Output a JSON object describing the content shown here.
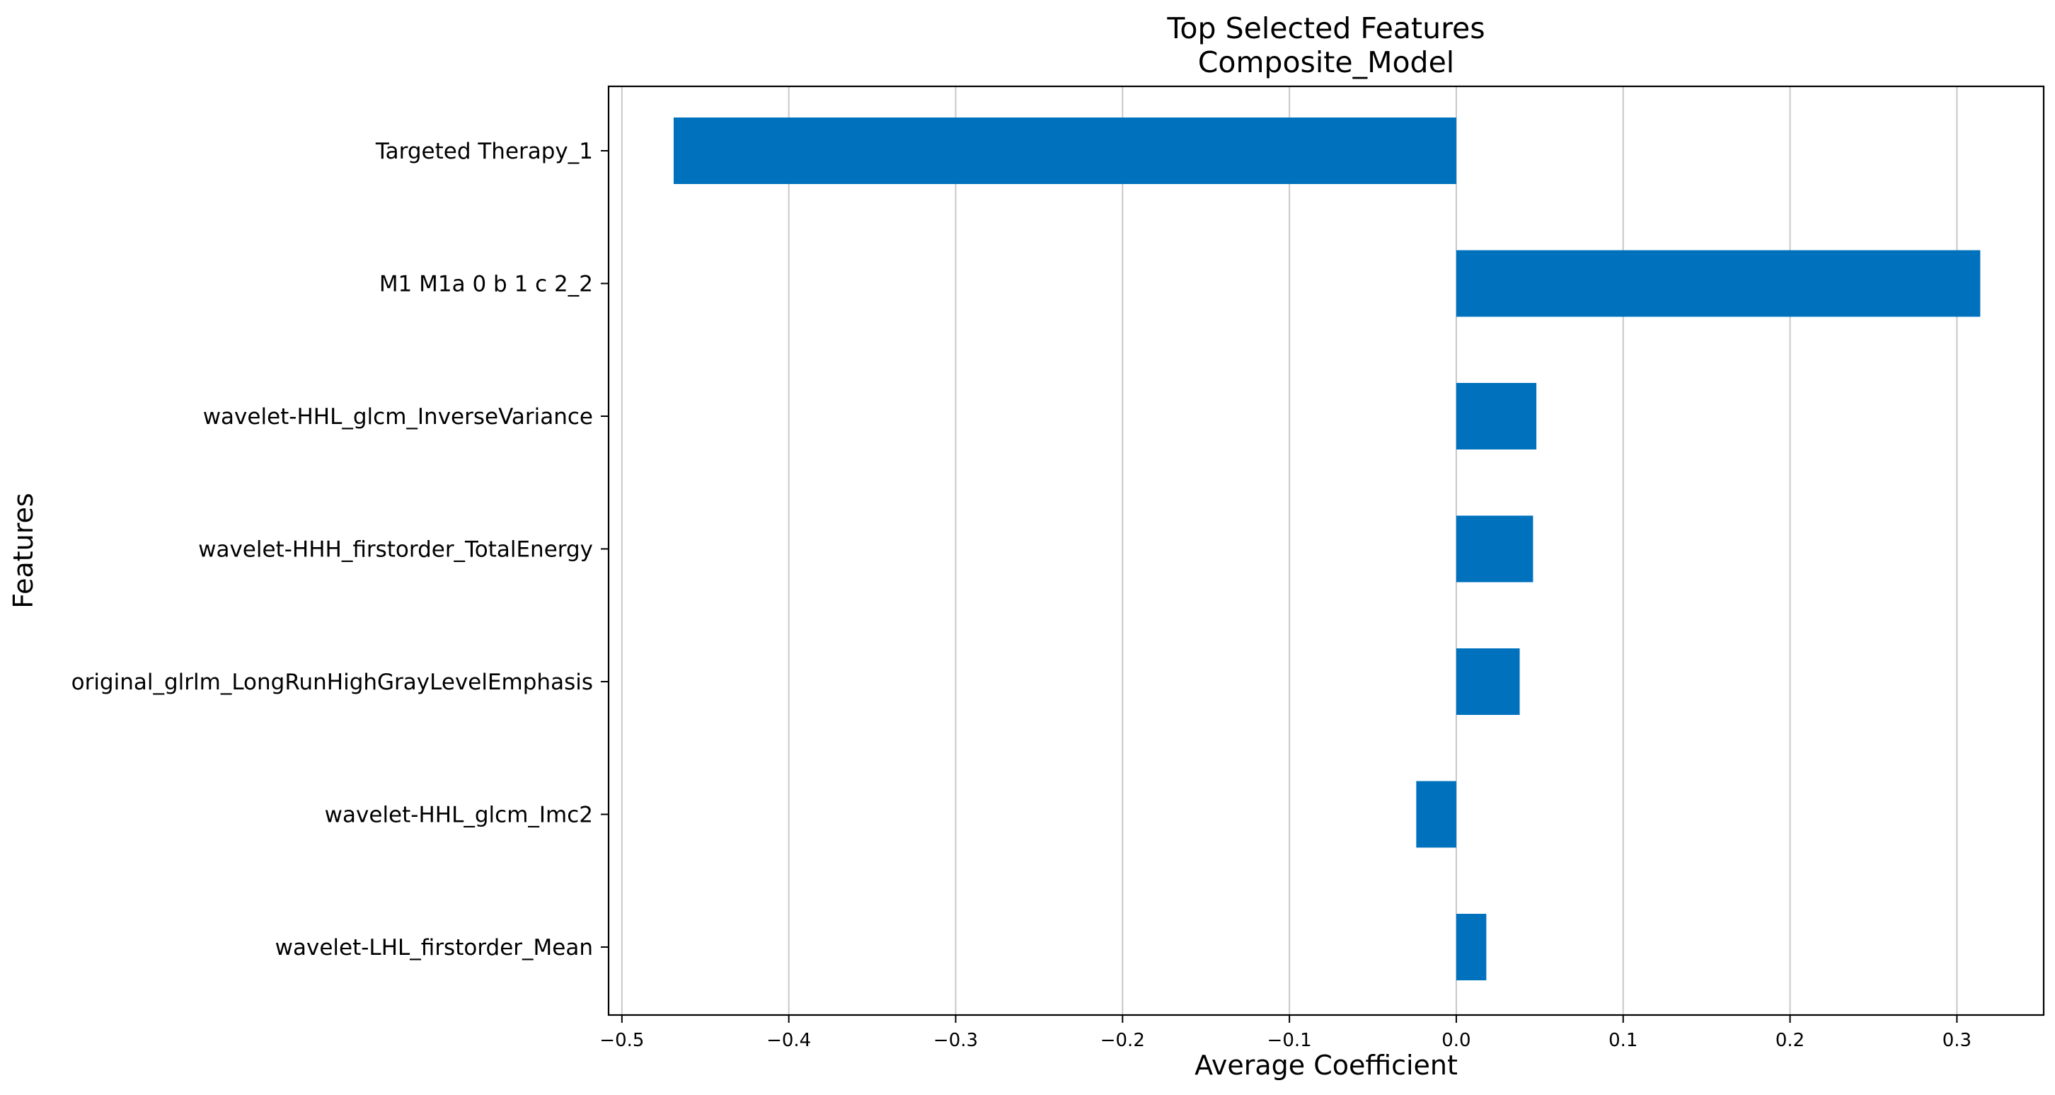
{
  "chart_data": {
    "type": "bar",
    "orientation": "horizontal",
    "title": "Top Selected Features",
    "subtitle": "Composite_Model",
    "xlabel": "Average Coefficient",
    "ylabel": "Features",
    "categories": [
      "Targeted Therapy_1",
      "M1 M1a 0 b 1 c 2_2",
      "wavelet-HHL_glcm_InverseVariance",
      "wavelet-HHH_firstorder_TotalEnergy",
      "original_glrlm_LongRunHighGrayLevelEmphasis",
      "wavelet-HHL_glcm_Imc2",
      "wavelet-LHL_firstorder_Mean"
    ],
    "values": [
      -0.469,
      0.314,
      0.048,
      0.046,
      0.038,
      -0.024,
      0.018
    ],
    "xlim": [
      -0.508,
      0.352
    ],
    "xticks": [
      -0.5,
      -0.4,
      -0.3,
      -0.2,
      -0.1,
      0.0,
      0.1,
      0.2,
      0.3
    ],
    "xtick_labels": [
      "−0.5",
      "−0.4",
      "−0.3",
      "−0.2",
      "−0.1",
      "0.0",
      "0.1",
      "0.2",
      "0.3"
    ],
    "grid": "vertical",
    "bar_color": "#0072bd"
  }
}
